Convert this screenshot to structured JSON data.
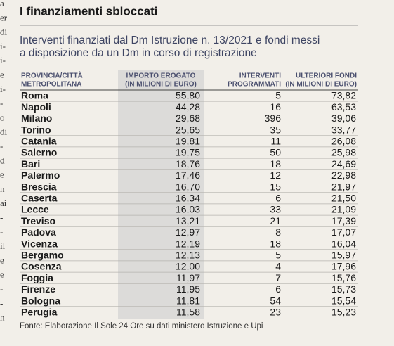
{
  "header": {
    "title": "I finanziamenti sbloccati",
    "subtitle": [
      "Interventi finanziati dal Dm Istruzione n. 13/2021 e fondi messi",
      "a disposizione da un Dm in corso di registrazione"
    ]
  },
  "margin_fragments": [
    "a",
    "er",
    "di",
    "i-",
    "i-",
    "e",
    "i-",
    "-",
    "o",
    "di",
    "-",
    "d",
    "e",
    "n",
    "ai",
    "-",
    "-",
    "il",
    "e",
    "e",
    "-",
    "-",
    "n"
  ],
  "table": {
    "columns": [
      [
        "PROVINCIA/CITTÀ",
        "METROPOLITANA"
      ],
      [
        "IMPORTO EROGATO",
        "(IN MILIONI DI EURO)"
      ],
      [
        "INTERVENTI",
        "PROGRAMMATI"
      ],
      [
        "ULTERIORI FONDI",
        "(IN MILIONI DI EURO)"
      ]
    ],
    "rows": [
      [
        "Roma",
        "55,80",
        "5",
        "73,82"
      ],
      [
        "Napoli",
        "44,28",
        "16",
        "63,53"
      ],
      [
        "Milano",
        "29,68",
        "396",
        "39,06"
      ],
      [
        "Torino",
        "25,65",
        "35",
        "33,77"
      ],
      [
        "Catania",
        "19,81",
        "11",
        "26,08"
      ],
      [
        "Salerno",
        "19,75",
        "50",
        "25,98"
      ],
      [
        "Bari",
        "18,76",
        "18",
        "24,69"
      ],
      [
        "Palermo",
        "17,46",
        "12",
        "22,98"
      ],
      [
        "Brescia",
        "16,70",
        "15",
        "21,97"
      ],
      [
        "Caserta",
        "16,34",
        "6",
        "21,50"
      ],
      [
        "Lecce",
        "16,03",
        "33",
        "21,09"
      ],
      [
        "Treviso",
        "13,21",
        "21",
        "17,39"
      ],
      [
        "Padova",
        "12,97",
        "8",
        "17,07"
      ],
      [
        "Vicenza",
        "12,19",
        "18",
        "16,04"
      ],
      [
        "Bergamo",
        "12,13",
        "5",
        "15,97"
      ],
      [
        "Cosenza",
        "12,00",
        "4",
        "17,96"
      ],
      [
        "Foggia",
        "11,97",
        "7",
        "15,76"
      ],
      [
        "Firenze",
        "11,95",
        "6",
        "15,73"
      ],
      [
        "Bologna",
        "11,81",
        "54",
        "15,54"
      ],
      [
        "Perugia",
        "11,58",
        "23",
        "15,23"
      ]
    ]
  },
  "source": "Fonte: Elaborazione Il Sole 24 Ore su dati ministero Istruzione e Upi"
}
